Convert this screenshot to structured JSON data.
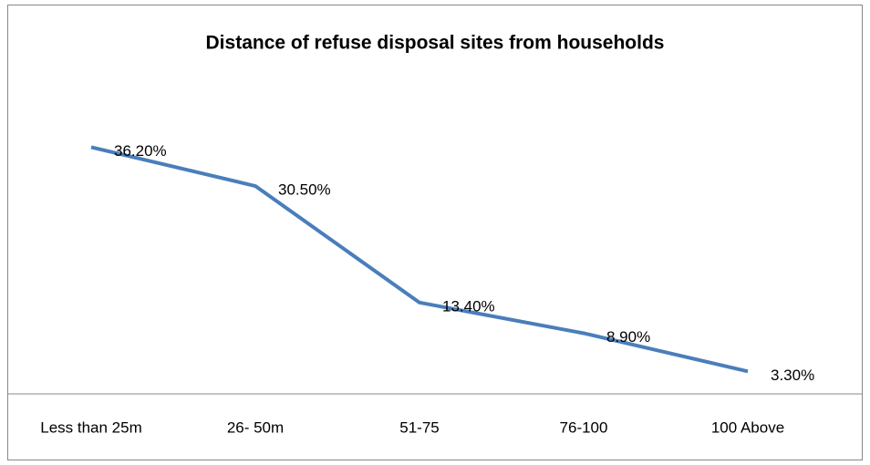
{
  "chart_data": {
    "type": "line",
    "title": "Distance of refuse disposal sites from households",
    "categories": [
      "Less than 25m",
      "26- 50m",
      "51-75",
      "76-100",
      "100 Above"
    ],
    "values": [
      36.2,
      30.5,
      13.4,
      8.9,
      3.3
    ],
    "value_labels": [
      "36.20%",
      "30.50%",
      "13.40%",
      "8.90%",
      "3.30%"
    ],
    "color": "#4a7ebb",
    "ylim": [
      0,
      40
    ]
  }
}
